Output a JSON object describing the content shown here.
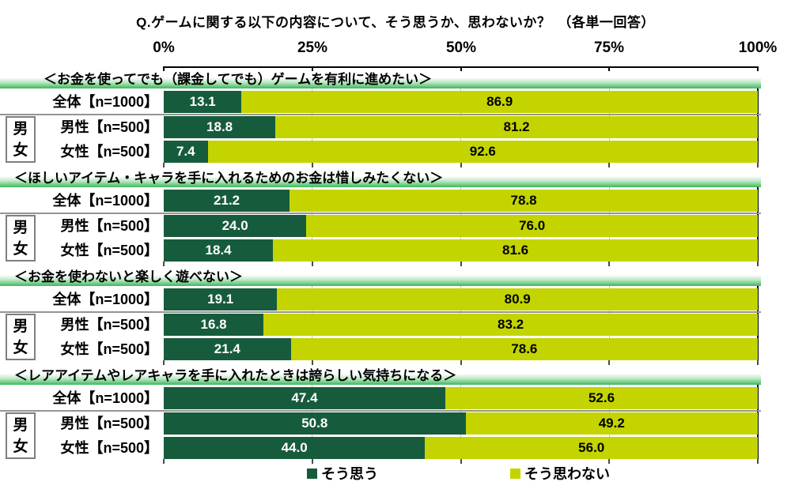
{
  "title": "Q.ゲームに関する以下の内容について、そう思うか、思わないか？　（各単一回答）",
  "axis": {
    "tick_labels": [
      "0%",
      "25%",
      "50%",
      "75%",
      "100%"
    ]
  },
  "group": {
    "top": "男",
    "bottom": "女"
  },
  "legend": {
    "items": [
      {
        "label": "そう思う",
        "color": "#175B3D"
      },
      {
        "label": "そう思わない",
        "color": "#C3D400"
      }
    ]
  },
  "colors": {
    "agree": "#175B3D",
    "disagree": "#C3D400",
    "header_band_green": "#3CB95A",
    "separator_gray": "#949494",
    "gridline_gray": "#C2C2C2"
  },
  "chart_data": {
    "type": "bar",
    "variant": "stacked-horizontal",
    "title": "Q.ゲームに関する以下の内容について、そう思うか、思わないか？　（各単一回答）",
    "x_ticks": [
      "0%",
      "25%",
      "50%",
      "75%",
      "100%"
    ],
    "xlim": [
      0,
      100
    ],
    "series_names": [
      "そう思う",
      "そう思わない"
    ],
    "group_label": "男女",
    "sections": [
      {
        "heading": "＜お金を使ってでも（課金してでも）ゲームを有利に進めたい＞",
        "rows": [
          {
            "label": "全体【n=1000】",
            "values": [
              13.1,
              86.9
            ],
            "labels": [
              "13.1",
              "86.9"
            ]
          },
          {
            "label": "男性【n=500】",
            "values": [
              18.8,
              81.2
            ],
            "labels": [
              "18.8",
              "81.2"
            ]
          },
          {
            "label": "女性【n=500】",
            "values": [
              7.4,
              92.6
            ],
            "labels": [
              "7.4",
              "92.6"
            ]
          }
        ]
      },
      {
        "heading": "＜ほしいアイテム・キャラを手に入れるためのお金は惜しみたくない＞",
        "rows": [
          {
            "label": "全体【n=1000】",
            "values": [
              21.2,
              78.8
            ],
            "labels": [
              "21.2",
              "78.8"
            ]
          },
          {
            "label": "男性【n=500】",
            "values": [
              24.0,
              76.0
            ],
            "labels": [
              "24.0",
              "76.0"
            ]
          },
          {
            "label": "女性【n=500】",
            "values": [
              18.4,
              81.6
            ],
            "labels": [
              "18.4",
              "81.6"
            ]
          }
        ]
      },
      {
        "heading": "＜お金を使わないと楽しく遊べない＞",
        "rows": [
          {
            "label": "全体【n=1000】",
            "values": [
              19.1,
              80.9
            ],
            "labels": [
              "19.1",
              "80.9"
            ]
          },
          {
            "label": "男性【n=500】",
            "values": [
              16.8,
              83.2
            ],
            "labels": [
              "16.8",
              "83.2"
            ]
          },
          {
            "label": "女性【n=500】",
            "values": [
              21.4,
              78.6
            ],
            "labels": [
              "21.4",
              "78.6"
            ]
          }
        ]
      },
      {
        "heading": "＜レアアイテムやレアキャラを手に入れたときは誇らしい気持ちになる＞",
        "rows": [
          {
            "label": "全体【n=1000】",
            "values": [
              47.4,
              52.6
            ],
            "labels": [
              "47.4",
              "52.6"
            ]
          },
          {
            "label": "男性【n=500】",
            "values": [
              50.8,
              49.2
            ],
            "labels": [
              "50.8",
              "49.2"
            ]
          },
          {
            "label": "女性【n=500】",
            "values": [
              44.0,
              56.0
            ],
            "labels": [
              "44.0",
              "56.0"
            ]
          }
        ]
      }
    ]
  }
}
